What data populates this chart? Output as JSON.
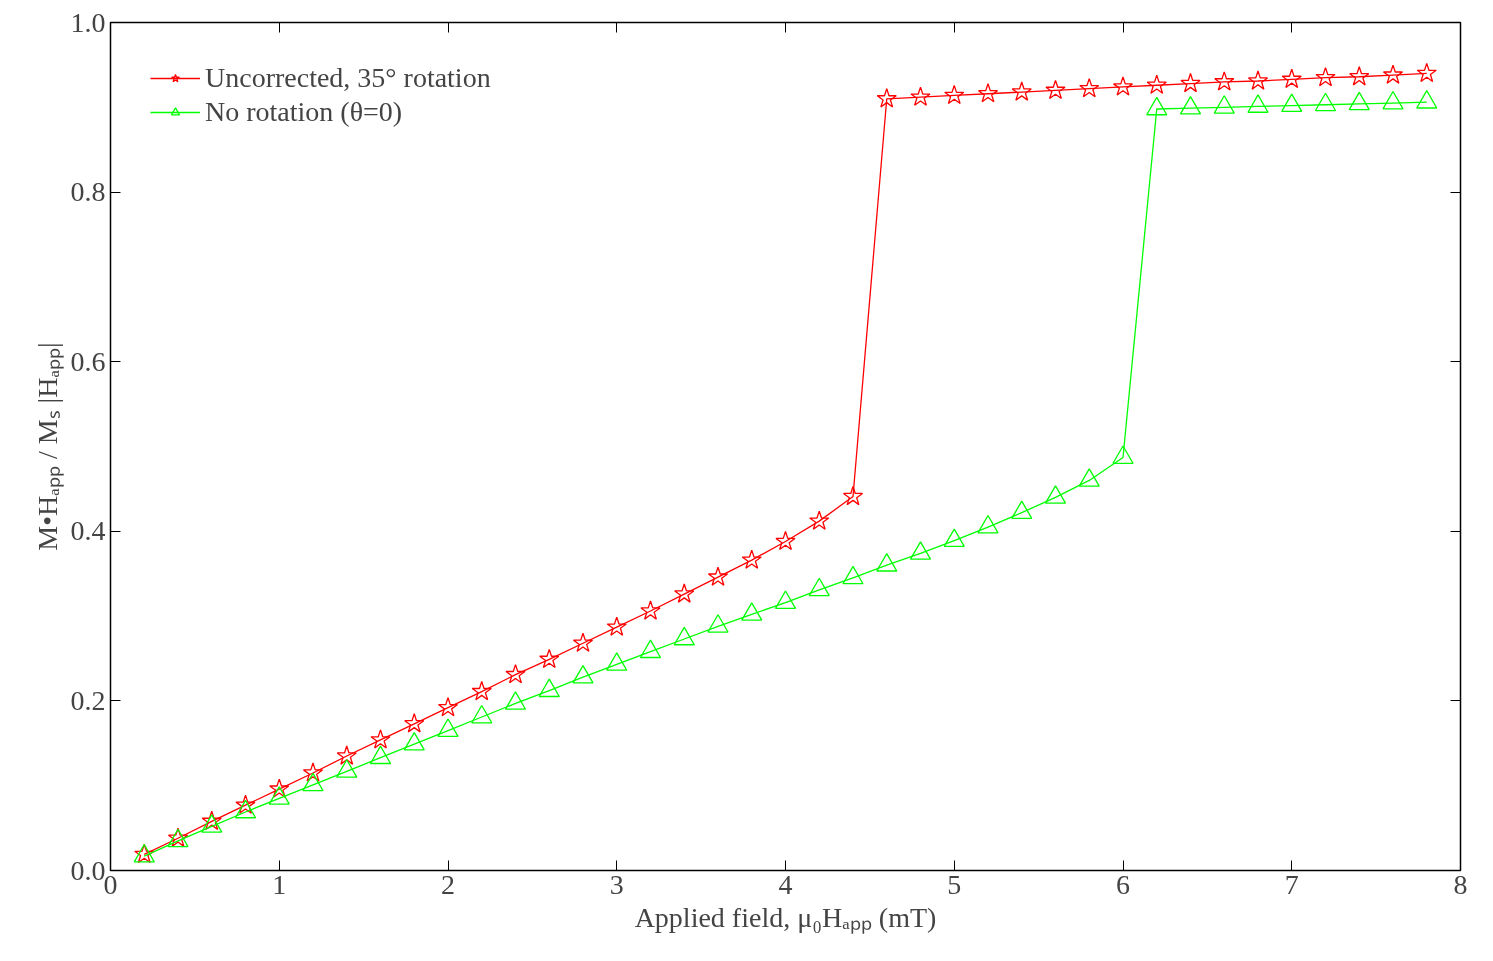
{
  "chart_data": {
    "type": "line",
    "xlabel": "Applied field, μ₀Hₐₚₚ (mT)",
    "ylabel": "M•Hₐₚₚ / Mₛ |Hₐₚₚ|",
    "xlim": [
      0,
      8
    ],
    "ylim": [
      0,
      1.0
    ],
    "xticks": [
      0,
      1,
      2,
      3,
      4,
      5,
      6,
      7,
      8
    ],
    "yticks": [
      {
        "value": 0,
        "label": "0.0"
      },
      0.2,
      0.4,
      0.6,
      0.8,
      {
        "value": 1.0,
        "label": "1.0"
      }
    ],
    "grid": false,
    "legend": "top left",
    "line_style": "solid",
    "series": [
      {
        "name": "Uncorrected, 35° rotation",
        "color": "#ff0000",
        "marker": "star",
        "x": [
          0.2,
          0.4,
          0.6,
          0.8,
          1.0,
          1.2,
          1.4,
          1.6,
          1.8,
          2.0,
          2.2,
          2.4,
          2.6,
          2.8,
          3.0,
          3.2,
          3.4,
          3.6,
          3.8,
          4.0,
          4.2,
          4.4,
          4.6,
          4.8,
          5.0,
          5.2,
          5.4,
          5.6,
          5.8,
          6.0,
          6.2,
          6.4,
          6.6,
          6.8,
          7.0,
          7.2,
          7.4,
          7.6,
          7.8
        ],
        "values": [
          0.019,
          0.038,
          0.058,
          0.077,
          0.096,
          0.115,
          0.135,
          0.154,
          0.173,
          0.192,
          0.211,
          0.231,
          0.249,
          0.268,
          0.287,
          0.306,
          0.326,
          0.346,
          0.366,
          0.388,
          0.412,
          0.441,
          0.91,
          0.912,
          0.914,
          0.916,
          0.918,
          0.92,
          0.922,
          0.924,
          0.926,
          0.928,
          0.93,
          0.931,
          0.933,
          0.935,
          0.936,
          0.938,
          0.94
        ]
      },
      {
        "name": "No rotation (θ=0)",
        "color": "#00ff00",
        "marker": "triangle",
        "x": [
          0.2,
          0.4,
          0.6,
          0.8,
          1.0,
          1.2,
          1.4,
          1.6,
          1.8,
          2.0,
          2.2,
          2.4,
          2.6,
          2.8,
          3.0,
          3.2,
          3.4,
          3.6,
          3.8,
          4.0,
          4.2,
          4.4,
          4.6,
          4.8,
          5.0,
          5.2,
          5.4,
          5.6,
          5.8,
          6.0,
          6.2,
          6.4,
          6.6,
          6.8,
          7.0,
          7.2,
          7.4,
          7.6,
          7.8
        ],
        "values": [
          0.017,
          0.035,
          0.052,
          0.069,
          0.085,
          0.101,
          0.117,
          0.133,
          0.149,
          0.165,
          0.181,
          0.197,
          0.212,
          0.228,
          0.243,
          0.258,
          0.273,
          0.288,
          0.302,
          0.316,
          0.331,
          0.345,
          0.36,
          0.374,
          0.389,
          0.405,
          0.422,
          0.44,
          0.46,
          0.487,
          0.898,
          0.899,
          0.9,
          0.901,
          0.902,
          0.903,
          0.904,
          0.905,
          0.906
        ]
      }
    ]
  }
}
